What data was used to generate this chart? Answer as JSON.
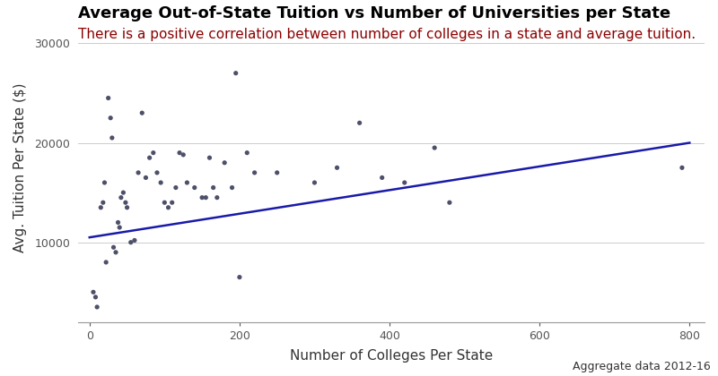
{
  "title": "Average Out-of-State Tuition vs Number of Universities per State",
  "subtitle": "There is a positive correlation between number of colleges in a state and average tuition.",
  "xlabel": "Number of Colleges Per State",
  "ylabel": "Avg. Tuition Per State ($)",
  "annotation": "Aggregate data 2012-16",
  "scatter_x": [
    5,
    8,
    10,
    15,
    18,
    20,
    22,
    25,
    28,
    30,
    32,
    35,
    38,
    40,
    42,
    45,
    48,
    50,
    55,
    60,
    65,
    70,
    75,
    80,
    85,
    90,
    95,
    100,
    105,
    110,
    115,
    120,
    125,
    130,
    140,
    150,
    155,
    160,
    165,
    170,
    180,
    190,
    195,
    200,
    210,
    220,
    250,
    300,
    330,
    360,
    390,
    420,
    460,
    480,
    790
  ],
  "scatter_y": [
    5000,
    4500,
    3500,
    13500,
    14000,
    16000,
    8000,
    24500,
    22500,
    20500,
    9500,
    9000,
    12000,
    11500,
    14500,
    15000,
    14000,
    13500,
    10000,
    10200,
    17000,
    23000,
    16500,
    18500,
    19000,
    17000,
    16000,
    14000,
    13500,
    14000,
    15500,
    19000,
    18800,
    16000,
    15500,
    14500,
    14500,
    18500,
    15500,
    14500,
    18000,
    15500,
    27000,
    6500,
    19000,
    17000,
    17000,
    16000,
    17500,
    22000,
    16500,
    16000,
    19500,
    14000,
    17500
  ],
  "trendline_x": [
    0,
    800
  ],
  "trendline_y": [
    10500,
    20000
  ],
  "dot_color": "#4d5068",
  "line_color": "#1a1aaa",
  "bg_color": "#ffffff",
  "grid_color": "#cccccc",
  "title_color": "#000000",
  "subtitle_color": "#8b0000",
  "annotation_color": "#333333",
  "xlim": [
    -15,
    820
  ],
  "ylim": [
    2000,
    33000
  ],
  "xticks": [
    0,
    200,
    400,
    600,
    800
  ],
  "yticks": [
    10000,
    20000,
    30000
  ],
  "title_fontsize": 13,
  "subtitle_fontsize": 11,
  "xlabel_fontsize": 11,
  "ylabel_fontsize": 11,
  "tick_fontsize": 9,
  "dot_size": 14,
  "line_width": 1.8
}
